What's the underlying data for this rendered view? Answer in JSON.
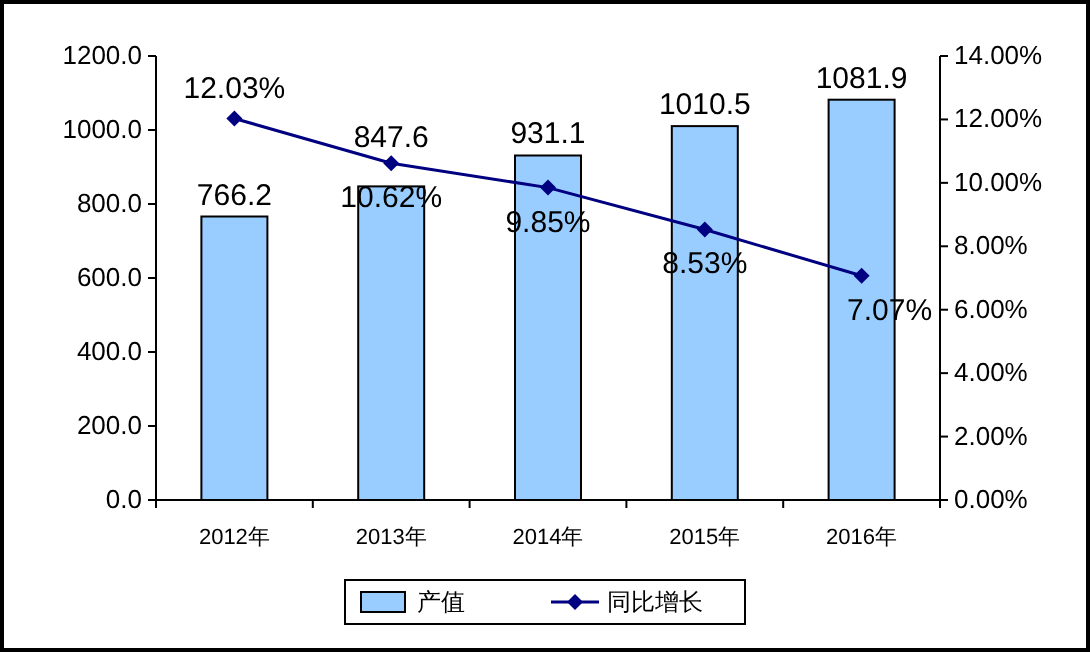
{
  "chart_data": {
    "type": "bar",
    "categories": [
      "2012年",
      "2013年",
      "2014年",
      "2015年",
      "2016年"
    ],
    "series": [
      {
        "name": "产值",
        "color": "#99ccff",
        "values": [
          766.2,
          847.6,
          931.1,
          1010.5,
          1081.9
        ],
        "value_labels": [
          "766.2",
          "847.6",
          "931.1",
          "1010.5",
          "1081.9"
        ]
      },
      {
        "name": "同比增长",
        "type": "line",
        "axis": "y2",
        "color": "#000080",
        "marker": "diamond",
        "values": [
          12.03,
          10.62,
          9.85,
          8.53,
          7.07
        ],
        "value_labels": [
          "12.03%",
          "10.62%",
          "9.85%",
          "8.53%",
          "7.07%"
        ]
      }
    ],
    "ylim": [
      0,
      1200
    ],
    "yticks": [
      {
        "value": 0,
        "label": "0.0"
      },
      {
        "value": 200,
        "label": "200.0"
      },
      {
        "value": 400,
        "label": "400.0"
      },
      {
        "value": 600,
        "label": "600.0"
      },
      {
        "value": 800,
        "label": "800.0"
      },
      {
        "value": 1000,
        "label": "1000.0"
      },
      {
        "value": 1200,
        "label": "1200.0"
      }
    ],
    "y2lim": [
      0,
      14
    ],
    "y2ticks": [
      {
        "value": 0,
        "label": "0.00%"
      },
      {
        "value": 2,
        "label": "2.00%"
      },
      {
        "value": 4,
        "label": "4.00%"
      },
      {
        "value": 6,
        "label": "6.00%"
      },
      {
        "value": 8,
        "label": "8.00%"
      },
      {
        "value": 10,
        "label": "10.00%"
      },
      {
        "value": 12,
        "label": "12.00%"
      },
      {
        "value": 14,
        "label": "14.00%"
      }
    ],
    "legend": "bottom"
  }
}
